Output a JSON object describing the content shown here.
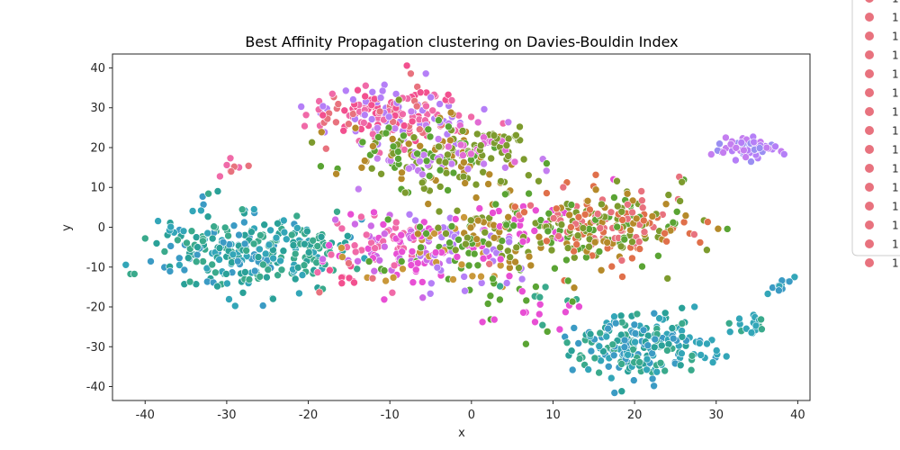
{
  "chart_data": {
    "type": "scatter",
    "title": "Best Affinity Propagation clustering on Davies-Bouldin Index",
    "xlabel": "x",
    "ylabel": "y",
    "xlim": [
      -44,
      41.5
    ],
    "ylim": [
      -43.5,
      43.5
    ],
    "xticks": [
      -40,
      -30,
      -20,
      -10,
      0,
      10,
      20,
      30,
      40
    ],
    "yticks": [
      -40,
      -30,
      -20,
      -10,
      0,
      10,
      20,
      30,
      40
    ],
    "grid": false,
    "legend": {
      "placement": "right",
      "entry_color": "#e8727e",
      "entries": [
        "1",
        "1",
        "1",
        "1",
        "1",
        "1",
        "1",
        "1",
        "1",
        "1",
        "1",
        "1",
        "1",
        "1",
        "1"
      ]
    },
    "clusters": [
      {
        "cx": -10,
        "cy": 29,
        "sx": 5,
        "sy": 4,
        "n": 180,
        "colors": [
          "#f2508f",
          "#e8727e",
          "#b57ff7",
          "#f06aa8"
        ]
      },
      {
        "cx": -4,
        "cy": 18,
        "sx": 5,
        "sy": 4,
        "n": 180,
        "colors": [
          "#7d9b2e",
          "#5aa434",
          "#b58a2a",
          "#c47ef0"
        ]
      },
      {
        "cx": 2,
        "cy": 20,
        "sx": 3,
        "sy": 3,
        "n": 40,
        "colors": [
          "#e26bd3",
          "#7d9b2e"
        ]
      },
      {
        "cx": -29,
        "cy": -6,
        "sx": 5,
        "sy": 5,
        "n": 220,
        "colors": [
          "#2aa198",
          "#33a6b8",
          "#3aaa8c",
          "#3b9bc4"
        ]
      },
      {
        "cx": -21,
        "cy": -5,
        "sx": 3,
        "sy": 4,
        "n": 60,
        "colors": [
          "#33a6b8",
          "#2aa198",
          "#3aaa8c"
        ]
      },
      {
        "cx": -10,
        "cy": -5,
        "sx": 4,
        "sy": 5,
        "n": 100,
        "colors": [
          "#e84fd4",
          "#f06aa8",
          "#cd6ae6"
        ]
      },
      {
        "cx": -2,
        "cy": -6,
        "sx": 5,
        "sy": 5,
        "n": 120,
        "colors": [
          "#e84fd4",
          "#b57ff7",
          "#5aa434",
          "#c9983a"
        ]
      },
      {
        "cx": 5,
        "cy": 0,
        "sx": 5,
        "sy": 5,
        "n": 120,
        "colors": [
          "#7d9b2e",
          "#e84fd4",
          "#b58a2a",
          "#5aa434"
        ]
      },
      {
        "cx": 17,
        "cy": 0,
        "sx": 5,
        "sy": 5,
        "n": 220,
        "colors": [
          "#b58a2a",
          "#e8727e",
          "#7d9b2e",
          "#5aa434",
          "#e0704b"
        ]
      },
      {
        "cx": 20,
        "cy": -30,
        "sx": 4,
        "sy": 4,
        "n": 200,
        "colors": [
          "#3b9bc4",
          "#2aa198",
          "#33a6b8",
          "#3aaa8c"
        ]
      },
      {
        "cx": 34,
        "cy": 20,
        "sx": 1.8,
        "sy": 1.5,
        "n": 70,
        "colors": [
          "#b57ff7",
          "#c47ef0",
          "#9a8ff2"
        ]
      },
      {
        "cx": 34,
        "cy": -25,
        "sx": 1.2,
        "sy": 1.2,
        "n": 18,
        "colors": [
          "#3aaa8c",
          "#33a6b8"
        ]
      },
      {
        "cx": 38,
        "cy": -15,
        "sx": 0.9,
        "sy": 0.9,
        "n": 12,
        "colors": [
          "#33a6b8",
          "#3b9bc4"
        ]
      },
      {
        "cx": 30,
        "cy": -32,
        "sx": 1,
        "sy": 1,
        "n": 8,
        "colors": [
          "#33a6b8"
        ]
      },
      {
        "cx": 8,
        "cy": -20,
        "sx": 4,
        "sy": 4,
        "n": 30,
        "colors": [
          "#3aaa8c",
          "#5aa434",
          "#e84fd4"
        ]
      },
      {
        "cx": -29,
        "cy": 15,
        "sx": 1.5,
        "sy": 1,
        "n": 8,
        "colors": [
          "#e8727e",
          "#f06aa8"
        ]
      },
      {
        "cx": -16,
        "cy": -13,
        "sx": 2,
        "sy": 2,
        "n": 10,
        "colors": [
          "#e8727e",
          "#f2508f"
        ]
      }
    ]
  }
}
